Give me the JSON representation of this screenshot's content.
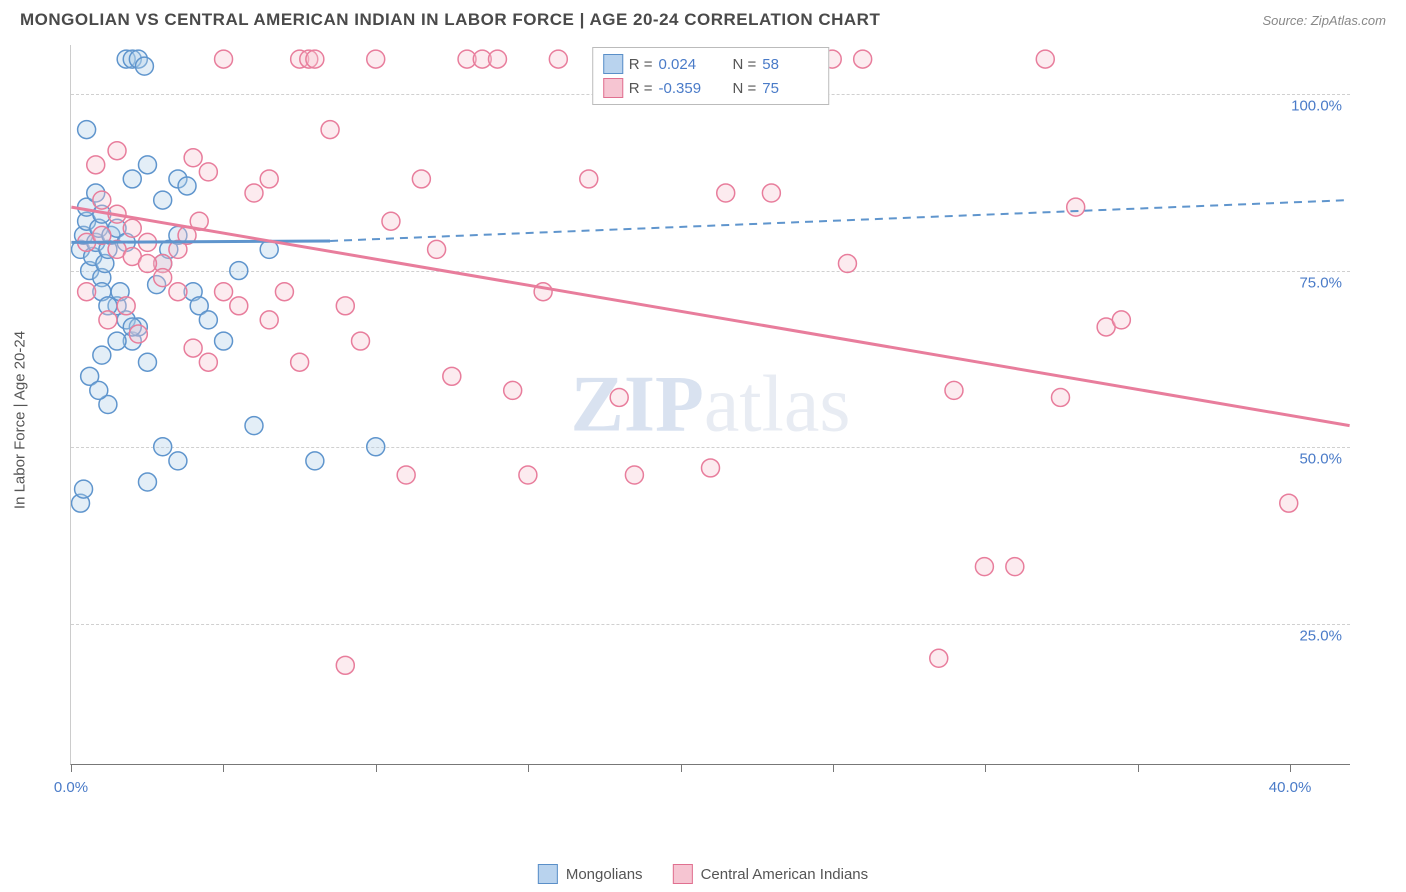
{
  "header": {
    "title": "MONGOLIAN VS CENTRAL AMERICAN INDIAN IN LABOR FORCE | AGE 20-24 CORRELATION CHART",
    "source_prefix": "Source: ",
    "source_name": "ZipAtlas.com"
  },
  "chart": {
    "type": "scatter",
    "y_axis_label": "In Labor Force | Age 20-24",
    "watermark_bold": "ZIP",
    "watermark_rest": "atlas",
    "xlim": [
      0,
      42
    ],
    "ylim": [
      5,
      107
    ],
    "x_ticks": [
      0,
      5,
      10,
      15,
      20,
      25,
      30,
      35,
      40
    ],
    "x_tick_labels": {
      "0": "0.0%",
      "40": "40.0%"
    },
    "y_ticks": [
      25,
      50,
      75,
      100
    ],
    "y_tick_labels": {
      "25": "25.0%",
      "50": "50.0%",
      "75": "75.0%",
      "100": "100.0%"
    },
    "grid_color": "#d0d0d0",
    "background_color": "#ffffff",
    "marker_radius": 9,
    "marker_stroke_width": 1.5,
    "marker_fill_opacity": 0.35,
    "series": [
      {
        "name": "Mongolians",
        "color_fill": "#aecde9",
        "color_stroke": "#5f95cd",
        "r_value": "0.024",
        "n_value": "58",
        "trend_solid": {
          "x1": 0,
          "y1": 79,
          "x2": 8.5,
          "y2": 79.2
        },
        "trend_dashed": {
          "x1": 8.5,
          "y1": 79.2,
          "x2": 42,
          "y2": 85
        },
        "points": [
          [
            0.3,
            78
          ],
          [
            0.4,
            80
          ],
          [
            0.5,
            82
          ],
          [
            0.6,
            75
          ],
          [
            0.7,
            77
          ],
          [
            0.8,
            79
          ],
          [
            0.9,
            81
          ],
          [
            1.0,
            74
          ],
          [
            1.1,
            76
          ],
          [
            1.2,
            78
          ],
          [
            1.3,
            80
          ],
          [
            1.5,
            70
          ],
          [
            1.6,
            72
          ],
          [
            1.8,
            68
          ],
          [
            2.0,
            65
          ],
          [
            2.2,
            67
          ],
          [
            2.5,
            62
          ],
          [
            0.5,
            95
          ],
          [
            1.0,
            72
          ],
          [
            1.2,
            70
          ],
          [
            0.3,
            42
          ],
          [
            0.4,
            44
          ],
          [
            1.2,
            56
          ],
          [
            2.5,
            45
          ],
          [
            1.8,
            105
          ],
          [
            2.0,
            105
          ],
          [
            2.2,
            105
          ],
          [
            2.4,
            104
          ],
          [
            2.0,
            88
          ],
          [
            2.5,
            90
          ],
          [
            3.0,
            85
          ],
          [
            3.5,
            88
          ],
          [
            3.8,
            87
          ],
          [
            2.8,
            73
          ],
          [
            3.0,
            76
          ],
          [
            3.2,
            78
          ],
          [
            3.5,
            80
          ],
          [
            4.0,
            72
          ],
          [
            4.2,
            70
          ],
          [
            4.5,
            68
          ],
          [
            5.0,
            65
          ],
          [
            0.5,
            84
          ],
          [
            0.8,
            86
          ],
          [
            1.0,
            83
          ],
          [
            1.5,
            81
          ],
          [
            1.8,
            79
          ],
          [
            3.0,
            50
          ],
          [
            3.5,
            48
          ],
          [
            6.0,
            53
          ],
          [
            8.0,
            48
          ],
          [
            10.0,
            50
          ],
          [
            1.0,
            63
          ],
          [
            1.5,
            65
          ],
          [
            2.0,
            67
          ],
          [
            0.6,
            60
          ],
          [
            0.9,
            58
          ],
          [
            5.5,
            75
          ],
          [
            6.5,
            78
          ]
        ]
      },
      {
        "name": "Central American Indians",
        "color_fill": "#f5c5d1",
        "color_stroke": "#e87d9c",
        "r_value": "-0.359",
        "n_value": "75",
        "trend_solid": {
          "x1": 0,
          "y1": 84,
          "x2": 42,
          "y2": 53
        },
        "trend_dashed": null,
        "points": [
          [
            0.5,
            79
          ],
          [
            1.0,
            80
          ],
          [
            1.5,
            78
          ],
          [
            2.0,
            77
          ],
          [
            2.5,
            79
          ],
          [
            3.0,
            76
          ],
          [
            3.5,
            78
          ],
          [
            4.0,
            91
          ],
          [
            4.5,
            89
          ],
          [
            5.0,
            72
          ],
          [
            5.5,
            70
          ],
          [
            6.0,
            86
          ],
          [
            6.5,
            68
          ],
          [
            7.0,
            72
          ],
          [
            7.5,
            105
          ],
          [
            7.8,
            105
          ],
          [
            8.0,
            105
          ],
          [
            8.5,
            95
          ],
          [
            9.0,
            70
          ],
          [
            9.5,
            65
          ],
          [
            10.0,
            105
          ],
          [
            10.5,
            82
          ],
          [
            11.0,
            46
          ],
          [
            11.5,
            88
          ],
          [
            12.0,
            78
          ],
          [
            12.5,
            60
          ],
          [
            13.0,
            105
          ],
          [
            13.5,
            105
          ],
          [
            14.0,
            105
          ],
          [
            14.5,
            58
          ],
          [
            15.0,
            46
          ],
          [
            15.5,
            72
          ],
          [
            16.0,
            105
          ],
          [
            17.0,
            88
          ],
          [
            18.0,
            57
          ],
          [
            18.5,
            46
          ],
          [
            21.0,
            47
          ],
          [
            22.0,
            105
          ],
          [
            23.0,
            86
          ],
          [
            24.0,
            105
          ],
          [
            25.0,
            105
          ],
          [
            26.0,
            105
          ],
          [
            25.5,
            76
          ],
          [
            9.0,
            19
          ],
          [
            28.5,
            20
          ],
          [
            30.0,
            33
          ],
          [
            29.0,
            58
          ],
          [
            32.0,
            105
          ],
          [
            33.0,
            84
          ],
          [
            34.0,
            67
          ],
          [
            32.5,
            57
          ],
          [
            31.0,
            33
          ],
          [
            34.5,
            68
          ],
          [
            40.0,
            42
          ],
          [
            1.0,
            85
          ],
          [
            1.5,
            83
          ],
          [
            2.0,
            81
          ],
          [
            2.5,
            76
          ],
          [
            3.0,
            74
          ],
          [
            3.5,
            72
          ],
          [
            4.0,
            64
          ],
          [
            4.5,
            62
          ],
          [
            5.0,
            105
          ],
          [
            6.5,
            88
          ],
          [
            7.5,
            62
          ],
          [
            0.5,
            72
          ],
          [
            1.2,
            68
          ],
          [
            1.8,
            70
          ],
          [
            2.2,
            66
          ],
          [
            0.8,
            90
          ],
          [
            1.5,
            92
          ],
          [
            3.8,
            80
          ],
          [
            4.2,
            82
          ],
          [
            21.5,
            86
          ],
          [
            19.5,
            105
          ]
        ]
      }
    ],
    "legend_labels": {
      "r_prefix": "R =",
      "n_prefix": "N ="
    }
  }
}
